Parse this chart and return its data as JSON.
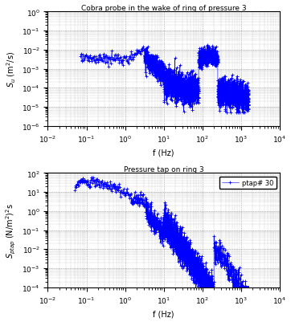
{
  "title1": "Cobra probe in the wake of ring of pressure 3",
  "title2": "Pressure tap on ring 3",
  "xlabel": "f (Hz)",
  "xlim": [
    0.01,
    10000.0
  ],
  "ylim1": [
    1e-06,
    1.0
  ],
  "ylim2": [
    0.0001,
    100.0
  ],
  "line_color": "#0000FF",
  "marker": "+",
  "markersize": 2.5,
  "linewidth": 0.4,
  "background_color": "#ffffff",
  "grid_color": "#888888",
  "legend_label": "ptap# 30"
}
